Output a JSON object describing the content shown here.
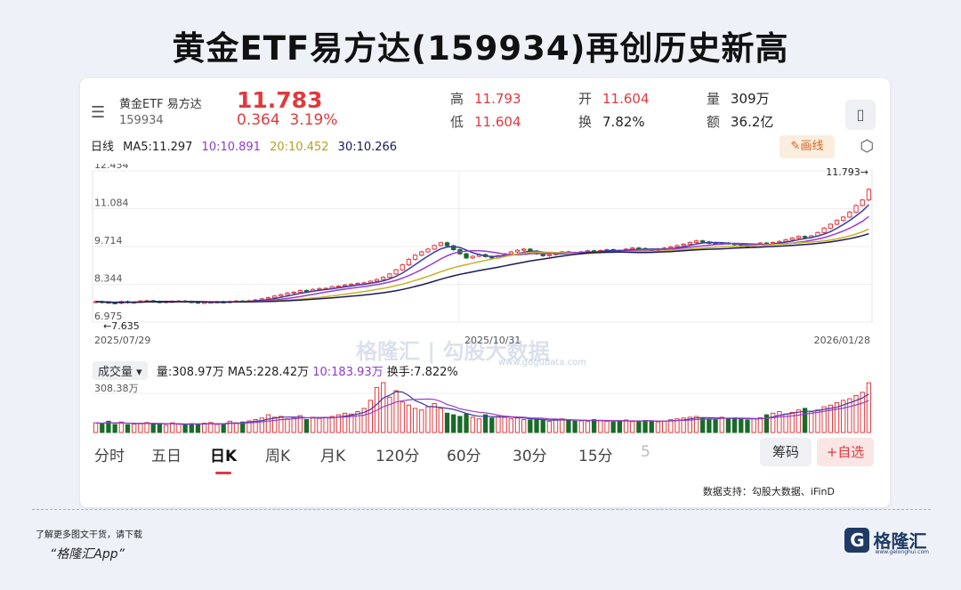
{
  "headline": "黄金ETF易方达(159934)再创历史新高",
  "quote": {
    "name": "黄金ETF 易方达",
    "code": "159934",
    "price": "11.783",
    "change": "0.364",
    "change_pct": "3.19%",
    "stats": {
      "high_label": "高",
      "high": "11.793",
      "low_label": "低",
      "low": "11.604",
      "open_label": "开",
      "open": "11.604",
      "turnover_label": "换",
      "turnover": "7.82%",
      "volume_label": "量",
      "volume": "309万",
      "amount_label": "额",
      "amount": "36.2亿"
    }
  },
  "ma_row": {
    "period": "日线",
    "ma5": "MA5:11.297",
    "ma10": "10:10.891",
    "ma20": "20:10.452",
    "ma30": "30:10.266"
  },
  "draw_button": "画线",
  "volume_row": {
    "selector": "成交量",
    "vol": "量:308.97万",
    "ma5": "MA5:228.42万",
    "ma10": "10:183.93万",
    "turnover": "换手:7.822%"
  },
  "tabs": [
    "分时",
    "五日",
    "日K",
    "周K",
    "月K",
    "120分",
    "60分",
    "30分",
    "15分",
    "5"
  ],
  "active_tab": "日K",
  "chip_button": "筹码",
  "add_watch_button": "+自选",
  "source_text": "数据支持：勾股大数据、iFinD",
  "watermark": "格隆汇 | 勾股大数据",
  "watermark_url": "www.gogudata.com",
  "footer": {
    "line1": "了解更多图文干货，请下载",
    "line2": "“格隆汇App”"
  },
  "logo": {
    "mark": "G",
    "text": "格隆汇",
    "url": "www.gelonghui.com"
  },
  "colors": {
    "up": "#e03a3e",
    "down": "#1a6b2a",
    "ma5": "#3a3aa8",
    "ma10": "#9b3cc8",
    "ma20": "#c7b02a",
    "ma30": "#1a1a5a"
  },
  "chart_data": {
    "type": "candlestick",
    "x_labels": [
      "2025/07/29",
      "2025/10/31",
      "2026/01/28"
    ],
    "y_ticks": [
      6.975,
      8.344,
      9.714,
      11.084,
      12.454
    ],
    "ylim": [
      6.975,
      12.454
    ],
    "max_marker": "11.793→",
    "min_marker": "←7.635",
    "close": [
      7.72,
      7.7,
      7.68,
      7.66,
      7.72,
      7.69,
      7.7,
      7.74,
      7.75,
      7.72,
      7.7,
      7.72,
      7.73,
      7.74,
      7.72,
      7.7,
      7.68,
      7.69,
      7.7,
      7.71,
      7.7,
      7.72,
      7.74,
      7.73,
      7.75,
      7.78,
      7.82,
      7.86,
      7.92,
      7.97,
      8.03,
      8.06,
      8.12,
      8.1,
      8.16,
      8.19,
      8.2,
      8.26,
      8.28,
      8.32,
      8.35,
      8.38,
      8.4,
      8.46,
      8.52,
      8.6,
      8.72,
      8.87,
      9.05,
      9.25,
      9.4,
      9.52,
      9.62,
      9.75,
      9.85,
      9.74,
      9.6,
      9.45,
      9.3,
      9.36,
      9.42,
      9.35,
      9.3,
      9.38,
      9.45,
      9.52,
      9.58,
      9.62,
      9.55,
      9.45,
      9.38,
      9.42,
      9.48,
      9.52,
      9.49,
      9.46,
      9.52,
      9.56,
      9.55,
      9.57,
      9.6,
      9.57,
      9.55,
      9.62,
      9.66,
      9.64,
      9.6,
      9.58,
      9.62,
      9.66,
      9.7,
      9.75,
      9.8,
      9.86,
      9.92,
      9.88,
      9.83,
      9.8,
      9.84,
      9.82,
      9.78,
      9.72,
      9.7,
      9.78,
      9.84,
      9.82,
      9.86,
      9.9,
      9.96,
      10.02,
      10.08,
      10.04,
      10.1,
      10.22,
      10.38,
      10.52,
      10.66,
      10.78,
      10.96,
      11.2,
      11.4,
      11.783
    ],
    "volume_max_tick": "308.38万",
    "volume": [
      60,
      55,
      70,
      50,
      65,
      48,
      52,
      58,
      62,
      55,
      50,
      45,
      60,
      52,
      48,
      55,
      50,
      58,
      62,
      50,
      55,
      70,
      60,
      65,
      72,
      80,
      90,
      110,
      95,
      100,
      85,
      90,
      105,
      80,
      95,
      88,
      92,
      100,
      110,
      120,
      115,
      130,
      150,
      200,
      280,
      310,
      220,
      260,
      190,
      170,
      150,
      140,
      160,
      180,
      150,
      120,
      110,
      100,
      115,
      95,
      85,
      110,
      90,
      100,
      95,
      85,
      90,
      80,
      78,
      82,
      75,
      70,
      80,
      85,
      78,
      70,
      72,
      68,
      80,
      75,
      70,
      65,
      72,
      78,
      68,
      70,
      75,
      72,
      66,
      70,
      80,
      85,
      90,
      95,
      100,
      92,
      85,
      80,
      95,
      88,
      90,
      82,
      78,
      85,
      92,
      110,
      120,
      130,
      115,
      125,
      140,
      150,
      130,
      140,
      160,
      170,
      185,
      200,
      210,
      230,
      250,
      309
    ]
  }
}
